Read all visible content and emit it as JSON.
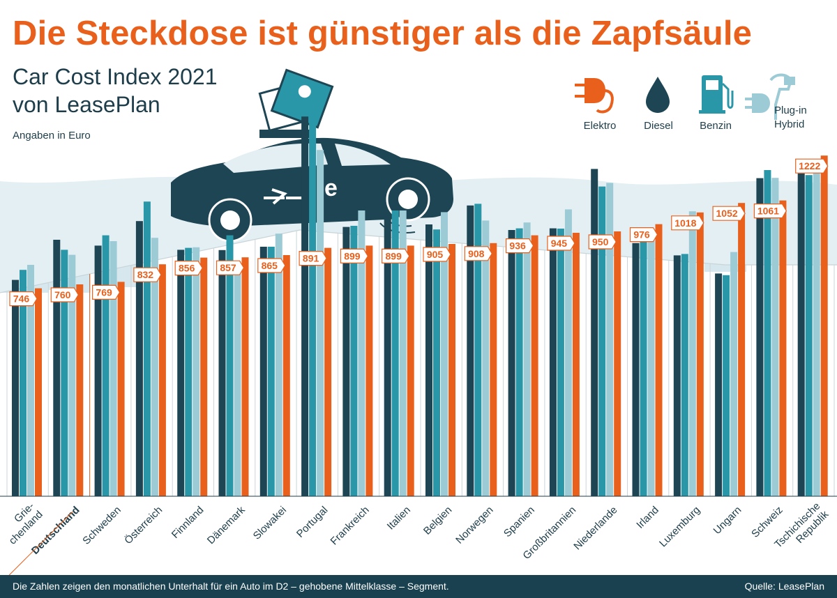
{
  "title": "Die Steckdose ist günstiger als die Zapfsäule",
  "subtitle_line1": "Car Cost Index 2021",
  "subtitle_line2": "von LeasePlan",
  "unit_note": "Angaben in Euro",
  "legend": [
    {
      "key": "Elektro",
      "icon": "plug-icon",
      "color": "#e8601c"
    },
    {
      "key": "Diesel",
      "icon": "drop-icon",
      "color": "#1d4554"
    },
    {
      "key": "Benzin",
      "icon": "fuel-pump-icon",
      "color": "#2a97a8"
    },
    {
      "key": "Plug-in Hybrid",
      "label_lines": [
        "Plug-in",
        "Hybrid"
      ],
      "icon": "hybrid-plug-pump-icon",
      "color": "#9ccbd6"
    }
  ],
  "illustration": {
    "car_badge": "e",
    "icon": "electric-car-with-euro-money-icon"
  },
  "footer_note": "Die Zahlen zeigen den monatlichen Unterhalt für ein Auto im D2 – gehobene Mittelklasse – Segment.",
  "footer_source": "Quelle: LeasePlan",
  "chart_data": {
    "type": "bar",
    "title": "Car Cost Index 2021",
    "ylabel": "Angaben in Euro",
    "ylim": [
      0,
      1400
    ],
    "highlight_category": "Deutschland",
    "categories": [
      "Griechenland",
      "Deutschland",
      "Schweden",
      "Österreich",
      "Finnland",
      "Dänemark",
      "Slowakei",
      "Portugal",
      "Frankreich",
      "Italien",
      "Belgien",
      "Norwegen",
      "Spanien",
      "Großbritannien",
      "Niederlande",
      "Irland",
      "Luxemburg",
      "Ungarn",
      "Schweiz",
      "Tschichische Republik"
    ],
    "category_labels": [
      [
        "Grie-",
        "chenland"
      ],
      [
        "Deutschland"
      ],
      [
        "Schweden"
      ],
      [
        "Österreich"
      ],
      [
        "Finnland"
      ],
      [
        "Dänemark"
      ],
      [
        "Slowakei"
      ],
      [
        "Portugal"
      ],
      [
        "Frankreich"
      ],
      [
        "Italien"
      ],
      [
        "Belgien"
      ],
      [
        "Norwegen"
      ],
      [
        "Spanien"
      ],
      [
        "Großbritannien"
      ],
      [
        "Niederlande"
      ],
      [
        "Irland"
      ],
      [
        "Luxemburg"
      ],
      [
        "Ungarn"
      ],
      [
        "Schweiz"
      ],
      [
        "Tschichische",
        "Republik"
      ]
    ],
    "series": [
      {
        "name": "Diesel",
        "color": "#1d4554",
        "values": [
          776,
          920,
          899,
          987,
          884,
          883,
          895,
          1362,
          966,
          1015,
          975,
          1043,
          955,
          961,
          1174,
          908,
          864,
          799,
          1141,
          1158
        ]
      },
      {
        "name": "Benzin",
        "color": "#2a97a8",
        "values": [
          812,
          884,
          936,
          1057,
          891,
          936,
          895,
          1432,
          970,
          1025,
          957,
          1049,
          961,
          960,
          1111,
          933,
          869,
          793,
          1170,
          1152
        ]
      },
      {
        "name": "Plug-in Hybrid",
        "color": "#9ccbd6",
        "values": [
          830,
          866,
          915,
          927,
          893,
          843,
          942,
          1242,
          1025,
          1025,
          1019,
          989,
          982,
          1029,
          1124,
          919,
          1022,
          876,
          1142,
          1181
        ]
      },
      {
        "name": "Elektro",
        "color": "#e8601c",
        "values": [
          746,
          760,
          769,
          832,
          856,
          857,
          865,
          891,
          899,
          899,
          905,
          908,
          936,
          945,
          950,
          976,
          1018,
          1052,
          1061,
          1222
        ]
      }
    ]
  }
}
